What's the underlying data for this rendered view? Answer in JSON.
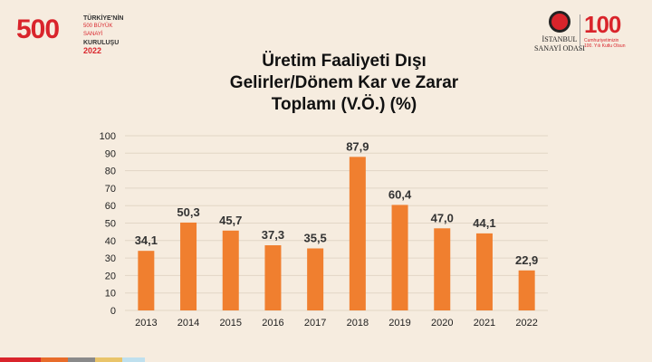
{
  "logos": {
    "left_big": "500",
    "left_line1": "TÜRKİYE'NİN",
    "left_line2": "500 BÜYÜK SANAYİ",
    "left_line3": "KURULUŞU",
    "left_year": "2022",
    "ico_line1": "İSTANBUL",
    "ico_line2": "SANAYİ ODASI",
    "right_num": "100",
    "right_line1": "Cumhuriyetimizin",
    "right_line2": "100. Yılı Kutlu Olsun"
  },
  "title_lines": [
    "Üretim Faaliyeti Dışı",
    "Gelirler/Dönem Kar ve Zarar",
    "Toplamı (V.Ö.) (%)"
  ],
  "chart_data": {
    "type": "bar",
    "title": "Üretim Faaliyeti Dışı Gelirler/Dönem Kar ve Zarar Toplamı (V.Ö.) (%)",
    "categories": [
      "2013",
      "2014",
      "2015",
      "2016",
      "2017",
      "2018",
      "2019",
      "2020",
      "2021",
      "2022"
    ],
    "values": [
      34.1,
      50.3,
      45.7,
      37.3,
      35.5,
      87.9,
      60.4,
      47.0,
      44.1,
      22.9
    ],
    "value_labels": [
      "34,1",
      "50,3",
      "45,7",
      "37,3",
      "35,5",
      "87,9",
      "60,4",
      "47,0",
      "44,1",
      "22,9"
    ],
    "ylim": [
      0,
      100
    ],
    "yticks": [
      "0",
      "10",
      "20",
      "30",
      "40",
      "50",
      "60",
      "70",
      "80",
      "90",
      "100"
    ],
    "grid": true,
    "bar_color": "#f07f2f",
    "xlabel": "",
    "ylabel": ""
  },
  "stripes": [
    "#d9242b",
    "#e86c2a",
    "#8a8a8a",
    "#e9c46a",
    "#bfe0ee"
  ]
}
